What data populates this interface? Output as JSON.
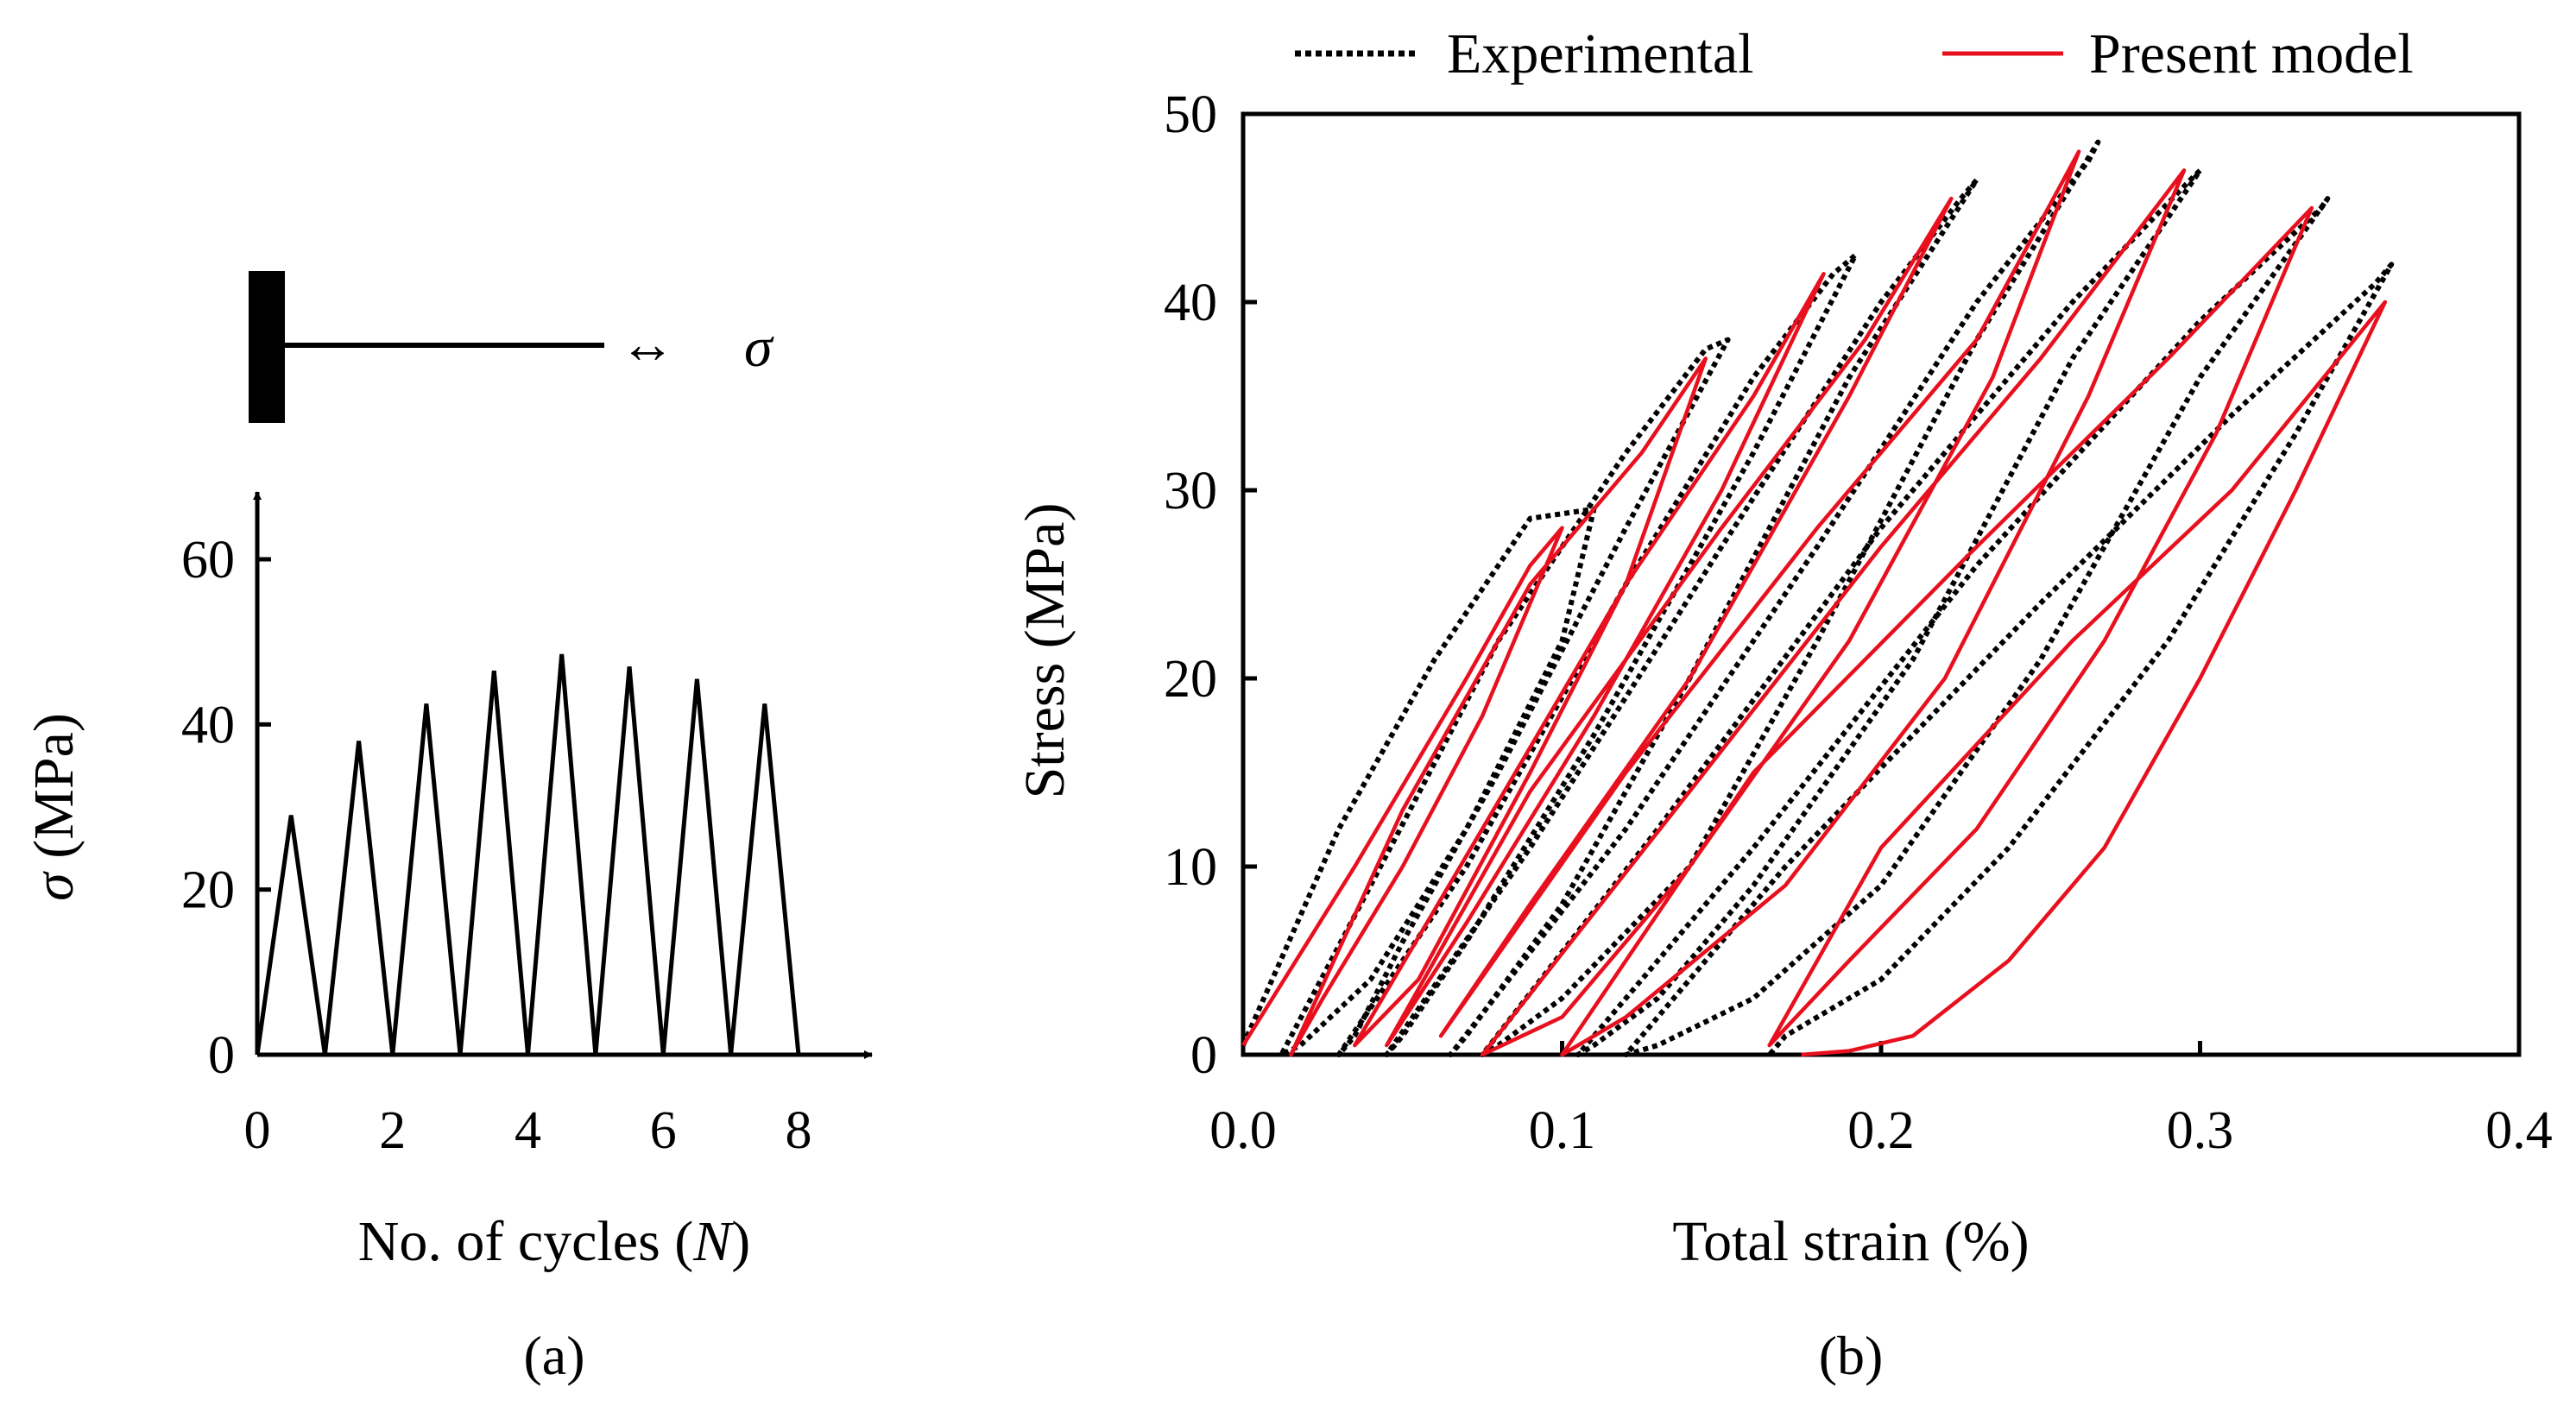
{
  "colors": {
    "experimental": "#000000",
    "model": "#e8101e",
    "axis": "#000000"
  },
  "panel_a": {
    "caption": "(a)",
    "load_symbol": "σ",
    "chart_data": {
      "type": "line",
      "title": "",
      "xlabel": "No. of cycles (N)",
      "xlabel_prefix": "No. of cycles (",
      "xlabel_var": "N",
      "xlabel_suffix": ")",
      "ylabel": "σ (MPa)",
      "ylabel_var": "σ",
      "ylabel_unit": " (MPa)",
      "xlim": [
        0,
        8
      ],
      "ylim": [
        0,
        60
      ],
      "xticks": [
        "0",
        "2",
        "4",
        "6",
        "8"
      ],
      "yticks": [
        "0",
        "20",
        "40",
        "60"
      ],
      "series": [
        {
          "x": [
            0,
            0.5,
            1,
            1.5,
            2,
            2.5,
            3,
            3.5,
            4,
            4.5,
            5,
            5.5,
            6,
            6.5,
            7,
            7.5,
            8
          ],
          "y": [
            0,
            29,
            0,
            38,
            0,
            42.5,
            0,
            46.5,
            0,
            48.5,
            0,
            47,
            0,
            45.5,
            0,
            42.5,
            0
          ]
        }
      ]
    }
  },
  "panel_b": {
    "caption": "(b)",
    "chart_data": {
      "type": "line",
      "title": "",
      "xlabel": "Total strain (%)",
      "ylabel": "Stress (MPa)",
      "xlim": [
        0,
        0.4
      ],
      "ylim": [
        0,
        50
      ],
      "xticks": [
        "0.0",
        "0.1",
        "0.2",
        "0.3",
        "0.4"
      ],
      "yticks": [
        "0",
        "10",
        "20",
        "30",
        "40",
        "50"
      ],
      "legend_position": "top",
      "grid": false,
      "series": [
        {
          "name": "Experimental",
          "style": "dotted",
          "x": [
            0.0,
            0.03,
            0.06,
            0.09,
            0.11,
            0.1,
            0.07,
            0.04,
            0.018,
            0.012,
            0.04,
            0.08,
            0.12,
            0.145,
            0.152,
            0.12,
            0.08,
            0.05,
            0.035,
            0.03,
            0.07,
            0.12,
            0.16,
            0.185,
            0.192,
            0.16,
            0.11,
            0.07,
            0.05,
            0.045,
            0.09,
            0.15,
            0.2,
            0.225,
            0.23,
            0.19,
            0.14,
            0.1,
            0.07,
            0.065,
            0.12,
            0.18,
            0.23,
            0.265,
            0.268,
            0.23,
            0.18,
            0.14,
            0.1,
            0.08,
            0.075,
            0.13,
            0.2,
            0.26,
            0.297,
            0.3,
            0.26,
            0.21,
            0.16,
            0.13,
            0.11,
            0.105,
            0.16,
            0.23,
            0.3,
            0.338,
            0.34,
            0.3,
            0.25,
            0.2,
            0.16,
            0.13,
            0.12,
            0.17,
            0.25,
            0.31,
            0.355,
            0.36,
            0.33,
            0.29,
            0.24,
            0.2,
            0.17,
            0.165
          ],
          "y": [
            0.5,
            12,
            21,
            28.5,
            29,
            22,
            12,
            4,
            0.5,
            0,
            9,
            22,
            32,
            37.5,
            38,
            28,
            15,
            6,
            1,
            0,
            10,
            25,
            36,
            41.5,
            42.5,
            32,
            17,
            6,
            1,
            0,
            11,
            27,
            40,
            45.5,
            46.5,
            36,
            20,
            8,
            1,
            0,
            12,
            27,
            40,
            47.5,
            48.5,
            38,
            22,
            10,
            3,
            0.5,
            0,
            12,
            28,
            40,
            46.5,
            47,
            37,
            21,
            9,
            3,
            0.5,
            0,
            11,
            26,
            39,
            45,
            45.5,
            36,
            21,
            9,
            3,
            0.5,
            0,
            10,
            24,
            34,
            41,
            42,
            33,
            22,
            11,
            4,
            1,
            0
          ]
        },
        {
          "name": "Present model",
          "style": "solid",
          "x": [
            0.0,
            0.035,
            0.07,
            0.09,
            0.1,
            0.075,
            0.05,
            0.025,
            0.015,
            0.05,
            0.09,
            0.125,
            0.145,
            0.12,
            0.09,
            0.055,
            0.035,
            0.075,
            0.12,
            0.16,
            0.182,
            0.15,
            0.11,
            0.07,
            0.045,
            0.09,
            0.15,
            0.195,
            0.222,
            0.19,
            0.14,
            0.09,
            0.062,
            0.12,
            0.18,
            0.23,
            0.262,
            0.235,
            0.19,
            0.14,
            0.1,
            0.075,
            0.14,
            0.2,
            0.25,
            0.295,
            0.265,
            0.22,
            0.17,
            0.12,
            0.1,
            0.16,
            0.23,
            0.29,
            0.335,
            0.305,
            0.27,
            0.23,
            0.19,
            0.165,
            0.2,
            0.26,
            0.31,
            0.358,
            0.33,
            0.3,
            0.27,
            0.24,
            0.21,
            0.19,
            0.175
          ],
          "y": [
            0.5,
            10,
            20,
            26,
            28,
            18,
            10,
            3,
            0,
            13,
            25,
            32,
            37,
            25,
            15,
            4,
            0.5,
            12,
            25,
            35,
            41.5,
            30,
            18,
            7,
            0.5,
            14,
            28,
            38,
            45.5,
            35,
            20,
            8,
            1,
            15,
            28,
            38,
            48,
            36,
            22,
            10,
            2,
            0,
            14,
            27,
            37,
            47,
            35,
            20,
            9,
            2,
            0,
            15,
            27,
            37,
            45,
            33,
            22,
            12,
            5,
            0.5,
            11,
            22,
            30,
            40,
            30,
            20,
            11,
            5,
            1,
            0.2,
            0
          ]
        }
      ]
    }
  }
}
